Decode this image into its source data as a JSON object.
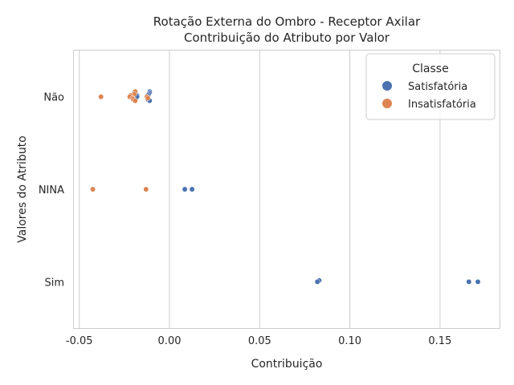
{
  "chart_data": {
    "type": "scatter",
    "title_lines": [
      "Rotação Externa do Ombro - Receptor Axilar",
      "Contribuição do Atributo por Valor"
    ],
    "xlabel": "Contribuição",
    "ylabel": "Valores do Atributo",
    "categories": [
      "Não",
      "NINA",
      "Sim"
    ],
    "xlim": [
      -0.053,
      0.183
    ],
    "x_ticks": [
      "-0.05",
      "0.00",
      "0.05",
      "0.10",
      "0.15"
    ],
    "x_tick_values": [
      -0.05,
      0.0,
      0.05,
      0.1,
      0.15
    ],
    "grid": "vertical",
    "legend": {
      "title": "Classe",
      "placement": "top-right"
    },
    "series": [
      {
        "name": "Satisfatória",
        "color": "#4c72b0",
        "points": [
          {
            "category": "Não",
            "x": -0.011,
            "offset": -0.24
          },
          {
            "category": "Não",
            "x": -0.011,
            "offset": -0.18
          },
          {
            "category": "Não",
            "x": -0.0115,
            "offset": -0.12
          },
          {
            "category": "Não",
            "x": -0.012,
            "offset": -0.06
          },
          {
            "category": "Não",
            "x": -0.018,
            "offset": -0.06
          },
          {
            "category": "Não",
            "x": -0.018,
            "offset": 0.0
          },
          {
            "category": "Não",
            "x": -0.012,
            "offset": 0.12
          },
          {
            "category": "Não",
            "x": -0.011,
            "offset": 0.18
          },
          {
            "category": "Não",
            "x": -0.0195,
            "offset": -0.18
          },
          {
            "category": "NINA",
            "x": 0.0085,
            "offset": 0.0
          },
          {
            "category": "NINA",
            "x": 0.0125,
            "offset": 0.0
          },
          {
            "category": "Sim",
            "x": 0.083,
            "offset": -0.06
          },
          {
            "category": "Sim",
            "x": 0.082,
            "offset": 0.0
          },
          {
            "category": "Sim",
            "x": 0.166,
            "offset": 0.0
          },
          {
            "category": "Sim",
            "x": 0.171,
            "offset": 0.0
          }
        ]
      },
      {
        "name": "Insatisfatória",
        "color": "#dd8452",
        "points": [
          {
            "category": "Não",
            "x": -0.019,
            "offset": -0.24
          },
          {
            "category": "Não",
            "x": -0.0195,
            "offset": -0.12
          },
          {
            "category": "Não",
            "x": -0.0215,
            "offset": -0.06
          },
          {
            "category": "Não",
            "x": -0.022,
            "offset": 0.0
          },
          {
            "category": "Não",
            "x": -0.038,
            "offset": 0.0
          },
          {
            "category": "Não",
            "x": -0.0125,
            "offset": 0.0
          },
          {
            "category": "Não",
            "x": -0.012,
            "offset": 0.06
          },
          {
            "category": "Não",
            "x": -0.0205,
            "offset": 0.06
          },
          {
            "category": "Não",
            "x": -0.02,
            "offset": 0.12
          },
          {
            "category": "Não",
            "x": -0.019,
            "offset": 0.18
          },
          {
            "category": "NINA",
            "x": -0.0425,
            "offset": 0.0
          },
          {
            "category": "NINA",
            "x": -0.013,
            "offset": 0.0
          }
        ]
      }
    ]
  }
}
